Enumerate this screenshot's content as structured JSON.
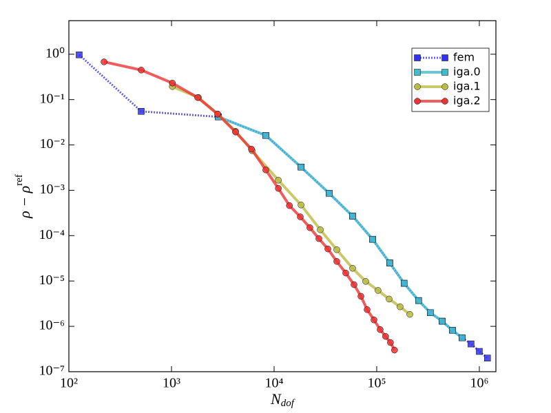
{
  "chart_data": {
    "type": "line",
    "x_label": {
      "main": "N",
      "sub": "dof"
    },
    "y_label": {
      "main": "ρ − ρ",
      "sup": "ref"
    },
    "xlog": true,
    "ylog": true,
    "xlim": [
      100,
      1450000
    ],
    "ylim": [
      1e-07,
      5.5
    ],
    "xticks": [
      {
        "value": 100,
        "label": "10²"
      },
      {
        "value": 1000,
        "label": "10³"
      },
      {
        "value": 10000,
        "label": "10⁴"
      },
      {
        "value": 100000,
        "label": "10⁵"
      },
      {
        "value": 1000000,
        "label": "10⁶"
      }
    ],
    "yticks": [
      {
        "value": 1e-07,
        "label": "10⁻⁷"
      },
      {
        "value": 1e-06,
        "label": "10⁻⁶"
      },
      {
        "value": 1e-05,
        "label": "10⁻⁵"
      },
      {
        "value": 0.0001,
        "label": "10⁻⁴"
      },
      {
        "value": 0.001,
        "label": "10⁻³"
      },
      {
        "value": 0.01,
        "label": "10⁻²"
      },
      {
        "value": 0.1,
        "label": "10⁻¹"
      },
      {
        "value": 1,
        "label": "10⁰"
      }
    ],
    "legend": "upper right",
    "series": [
      {
        "name": "fem",
        "color": "#3333ee",
        "linestyle": "dotted",
        "marker": "square",
        "x": [
          126,
          507,
          2860,
          8300,
          18300,
          34400,
          58200,
          91200,
          134000,
          185000,
          256000,
          333000,
          434000,
          547000,
          679000,
          830000,
          1000000,
          1200000
        ],
        "values": [
          0.97,
          0.055,
          0.0416,
          0.0162,
          0.00325,
          0.00086,
          0.00027,
          8.3e-05,
          2.5e-05,
          8.9e-06,
          3.7e-06,
          2e-06,
          1.3e-06,
          8.2e-07,
          5.6e-07,
          4.1e-07,
          2.8e-07,
          2e-07
        ]
      },
      {
        "name": "iga.0",
        "color": "#44bbcc",
        "linestyle": "solid",
        "marker": "square",
        "x": [
          2860,
          8300,
          18300,
          34400,
          58200,
          91200,
          134000,
          185000,
          256000,
          333000,
          434000,
          547000,
          679000
        ],
        "values": [
          0.0416,
          0.0162,
          0.00325,
          0.00086,
          0.00027,
          8.3e-05,
          2.5e-05,
          8.9e-06,
          3.7e-06,
          2e-06,
          1.3e-06,
          8.2e-07,
          5.6e-07
        ]
      },
      {
        "name": "iga.1",
        "color": "#bbbb44",
        "linestyle": "solid",
        "marker": "circle",
        "x": [
          1020,
          1830,
          2820,
          4210,
          6100,
          11000,
          18300,
          28200,
          40800,
          58200,
          78100,
          103000,
          132000,
          169000,
          210000
        ],
        "values": [
          0.194,
          0.111,
          0.048,
          0.02,
          0.0075,
          0.00167,
          0.000475,
          0.000135,
          4.9e-05,
          1.91e-05,
          9.8e-06,
          6.2e-06,
          4e-06,
          2.7e-06,
          1.84e-06
        ]
      },
      {
        "name": "iga.2",
        "color": "#ee3333",
        "linestyle": "solid",
        "marker": "circle",
        "x": [
          220,
          507,
          1020,
          1800,
          2820,
          4210,
          6010,
          8300,
          11000,
          14100,
          18000,
          22300,
          27300,
          33400,
          40800,
          49900,
          60100,
          70200,
          80600,
          94000,
          108000,
          122000,
          136000,
          149000
        ],
        "values": [
          0.68,
          0.448,
          0.231,
          0.111,
          0.048,
          0.0193,
          0.0081,
          0.00282,
          0.0011,
          0.00046,
          0.00026,
          0.00015,
          8.6e-05,
          5.1e-05,
          2.7e-05,
          1.5e-05,
          8.3e-06,
          4.6e-06,
          2.34e-06,
          1.39e-06,
          8.5e-07,
          6e-07,
          4.4e-07,
          3e-07
        ]
      }
    ]
  }
}
